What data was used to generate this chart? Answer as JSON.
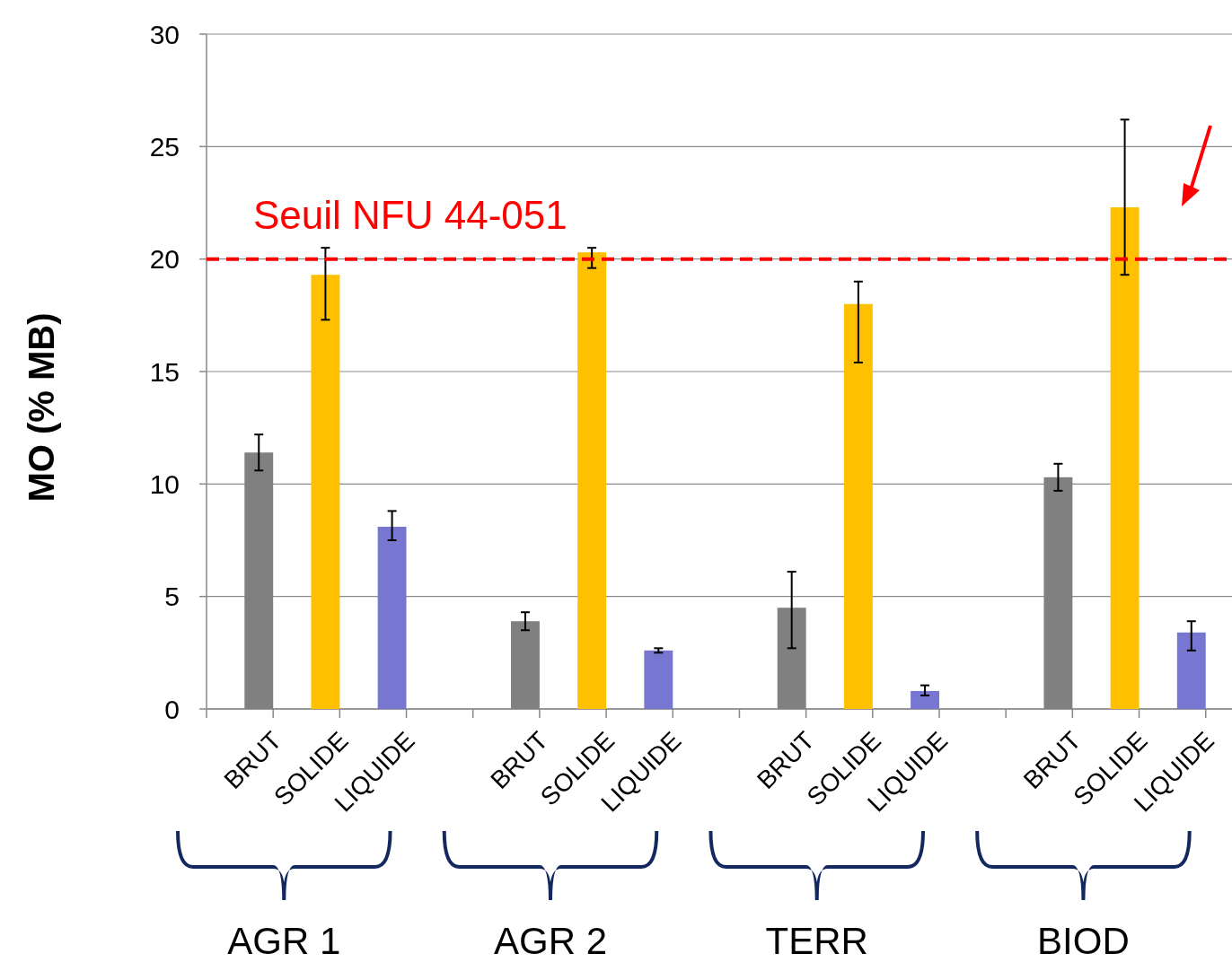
{
  "chart_data": {
    "type": "bar",
    "ylabel": "MO (% MB)",
    "categories": [
      "BRUT",
      "SOLIDE",
      "LIQUIDE",
      null,
      "BRUT",
      "SOLIDE",
      "LIQUIDE",
      null,
      "BRUT",
      "SOLIDE",
      "LIQUIDE",
      null,
      "BRUT",
      "SOLIDE",
      "LIQUIDE"
    ],
    "values": [
      11.4,
      19.3,
      8.1,
      null,
      3.9,
      20.3,
      2.6,
      null,
      4.5,
      18.0,
      0.8,
      null,
      10.3,
      22.3,
      3.4
    ],
    "colors": [
      "#808080",
      "#ffc000",
      "#7777d1",
      null,
      "#808080",
      "#ffc000",
      "#7777d1",
      null,
      "#808080",
      "#ffc000",
      "#7777d1",
      null,
      "#808080",
      "#ffc000",
      "#7777d1"
    ],
    "errors": [
      [
        10.6,
        12.2
      ],
      [
        17.3,
        20.5
      ],
      [
        7.5,
        8.8
      ],
      null,
      [
        3.5,
        4.3
      ],
      [
        19.6,
        20.5
      ],
      [
        2.5,
        2.7
      ],
      null,
      [
        2.7,
        6.1
      ],
      [
        15.4,
        19.0
      ],
      [
        0.6,
        1.05
      ],
      null,
      [
        9.7,
        10.9
      ],
      [
        19.3,
        26.2
      ],
      [
        2.6,
        3.9
      ]
    ],
    "ylim": [
      0,
      30
    ],
    "yticks": [
      0,
      5,
      10,
      15,
      20,
      25,
      30
    ],
    "grid": "y",
    "ref_lines": [
      {
        "axis": "y",
        "value": 20,
        "label": "Seuil NFU 44-051",
        "color": "#ff0000",
        "line_style": "dashed"
      }
    ],
    "annotations": [
      "AGR 1",
      "AGR 2",
      "TERR",
      "BIOD"
    ]
  }
}
